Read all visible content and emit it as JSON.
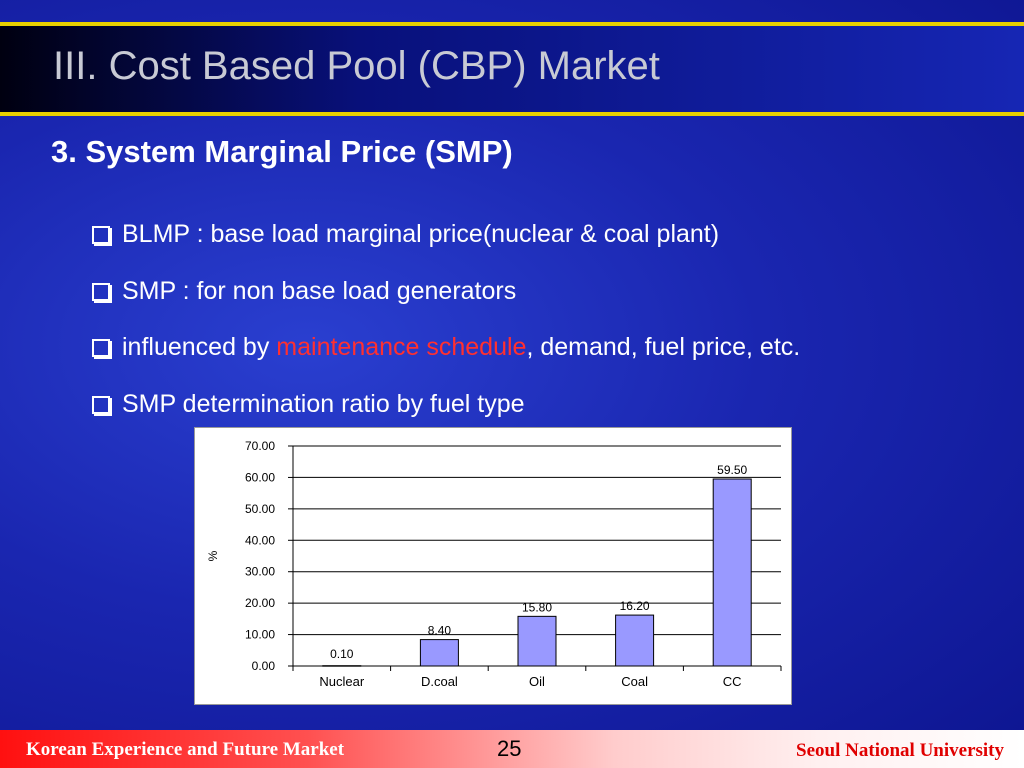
{
  "slide": {
    "title": "III. Cost Based Pool (CBP) Market",
    "subtitle": "3. System Marginal Price (SMP)",
    "bullets": [
      {
        "text": "BLMP : base load marginal price(nuclear & coal plant)"
      },
      {
        "text": "SMP : for non base load generators"
      },
      {
        "pre": "influenced by ",
        "highlight": "maintenance schedule",
        "post": ", demand, fuel price, etc."
      },
      {
        "text": "SMP determination ratio by fuel type"
      }
    ]
  },
  "colors": {
    "background": "#1a26b0",
    "accent_line": "#e8d000",
    "highlight": "#ff3030",
    "bar_fill": "#9999ff"
  },
  "chart_data": {
    "type": "bar",
    "title": "",
    "xlabel": "",
    "ylabel": "%",
    "categories": [
      "Nuclear",
      "D.coal",
      "Oil",
      "Coal",
      "CC"
    ],
    "values": [
      0.1,
      8.4,
      15.8,
      16.2,
      59.5
    ],
    "data_labels": [
      "0.10",
      "8.40",
      "15.80",
      "16.20",
      "59.50"
    ],
    "ylim": [
      0,
      70
    ],
    "yticks": [
      "0.00",
      "10.00",
      "20.00",
      "30.00",
      "40.00",
      "50.00",
      "60.00",
      "70.00"
    ],
    "grid": true,
    "legend": "none"
  },
  "footer": {
    "left": "Korean Experience and Future Market",
    "page": "25",
    "right": "Seoul National University"
  }
}
